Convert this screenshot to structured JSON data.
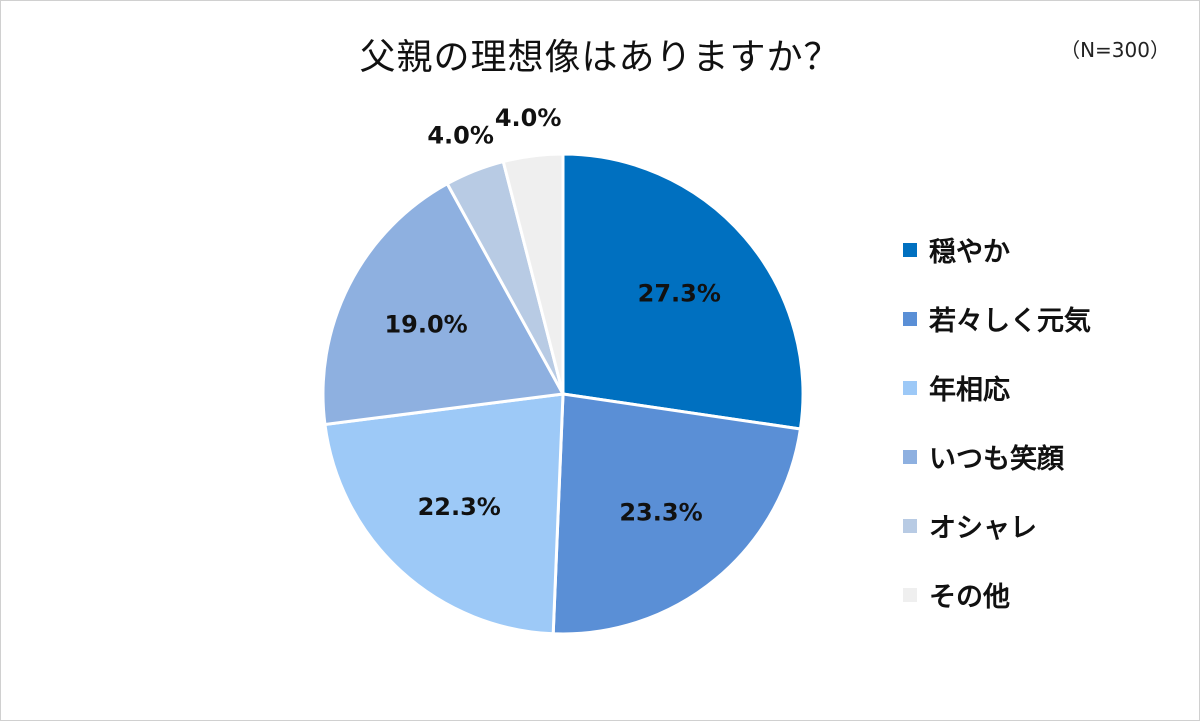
{
  "title": "父親の理想像はありますか？",
  "sample_size": "（N=300）",
  "chart_data": {
    "type": "pie",
    "title": "父親の理想像はありますか？",
    "categories": [
      "穏やか",
      "若々しく元気",
      "年相応",
      "いつも笑顔",
      "オシャレ",
      "その他"
    ],
    "values": [
      27.3,
      23.3,
      22.3,
      19.0,
      4.0,
      4.0
    ],
    "labels": [
      "27.3%",
      "23.3%",
      "22.3%",
      "19.0%",
      "4.0%",
      "4.0%"
    ],
    "colors": [
      "#0070c0",
      "#5a8fd6",
      "#9dc9f7",
      "#8eb0e0",
      "#b8cbe4",
      "#efefef"
    ],
    "legend": "right"
  }
}
